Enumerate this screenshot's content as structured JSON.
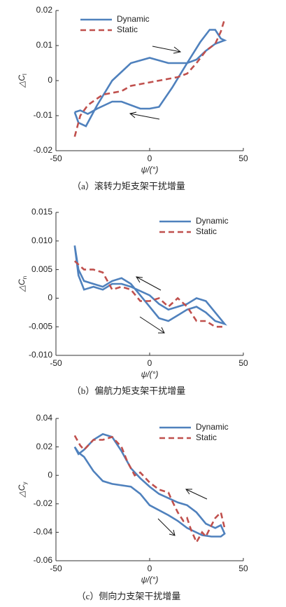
{
  "chart_data": [
    {
      "type": "line",
      "xlabel": "ψ/(°)",
      "ylabel": "△C",
      "ylabel_subscript": "l",
      "caption": "（a）滚转力矩支架干扰增量",
      "xlim": [
        -50,
        50
      ],
      "xticks": [
        -50,
        0,
        50
      ],
      "ylim": [
        -0.02,
        0.02
      ],
      "yticks": [
        -0.02,
        -0.01,
        0,
        0.01,
        0.02
      ],
      "legend": "upper left",
      "series": [
        {
          "name": "Dynamic",
          "color": "#4f81bd",
          "style": "solid",
          "x": [
            -40,
            -37,
            -33,
            -28,
            -20,
            -15,
            -5,
            0,
            5,
            12,
            20,
            27,
            32,
            35,
            38,
            40,
            35,
            30,
            25,
            20,
            10,
            0,
            -10,
            -20,
            -28,
            -34,
            -38,
            -40
          ],
          "values": [
            -0.009,
            -0.0085,
            -0.0095,
            -0.008,
            -0.006,
            -0.006,
            -0.008,
            -0.008,
            -0.0075,
            -0.002,
            0.005,
            0.011,
            0.0145,
            0.0145,
            0.012,
            0.0115,
            0.0105,
            0.0085,
            0.006,
            0.005,
            0.005,
            0.0065,
            0.005,
            0.0,
            -0.007,
            -0.013,
            -0.012,
            -0.009
          ]
        },
        {
          "name": "Static",
          "color": "#c0504d",
          "style": "dashed",
          "x": [
            -40,
            -37,
            -33,
            -25,
            -15,
            -10,
            -5,
            0,
            5,
            10,
            15,
            20,
            25,
            30,
            35,
            38,
            40
          ],
          "values": [
            -0.016,
            -0.01,
            -0.007,
            -0.004,
            -0.003,
            -0.0015,
            -0.001,
            -0.0005,
            0,
            0.0005,
            0.001,
            0.002,
            0.005,
            0.0085,
            0.0105,
            0.014,
            0.0175
          ]
        }
      ]
    },
    {
      "type": "line",
      "xlabel": "ψ/(°)",
      "ylabel": "△C",
      "ylabel_subscript": "n",
      "caption": "（b）偏航力矩支架干扰增量",
      "xlim": [
        -50,
        50
      ],
      "xticks": [
        -50,
        0,
        50
      ],
      "ylim": [
        -0.01,
        0.015
      ],
      "yticks": [
        {
          "value": -0.01,
          "label": "-0.010"
        },
        -0.005,
        0,
        0.005,
        {
          "value": 0.01,
          "label": "0.010"
        },
        0.015
      ],
      "legend": "upper right",
      "series": [
        {
          "name": "Dynamic",
          "color": "#4f81bd",
          "style": "solid",
          "x": [
            -40,
            -38,
            -35,
            -30,
            -25,
            -20,
            -15,
            -10,
            0,
            5,
            10,
            15,
            20,
            25,
            30,
            35,
            40,
            35,
            30,
            25,
            20,
            15,
            10,
            5,
            0,
            -5,
            -10,
            -15,
            -20,
            -25,
            -30,
            -35,
            -38,
            -40
          ],
          "values": [
            0.0092,
            0.004,
            0.0015,
            0.002,
            0.0015,
            0.0025,
            0.0025,
            0.002,
            0.0005,
            -0.001,
            -0.002,
            -0.0015,
            -0.001,
            0.0,
            -0.0005,
            -0.0025,
            -0.0045,
            -0.004,
            -0.0025,
            -0.0015,
            -0.002,
            -0.003,
            -0.004,
            -0.0035,
            -0.0015,
            0.0005,
            0.0025,
            0.0035,
            0.003,
            0.002,
            0.0025,
            0.003,
            0.005,
            0.0092
          ]
        },
        {
          "name": "Static",
          "color": "#c0504d",
          "style": "dashed",
          "x": [
            -40,
            -35,
            -30,
            -25,
            -20,
            -15,
            -10,
            -5,
            0,
            5,
            10,
            15,
            20,
            25,
            30,
            35,
            40
          ],
          "values": [
            0.0065,
            0.005,
            0.005,
            0.0045,
            0.0015,
            0.002,
            0.0015,
            -0.0005,
            -0.0005,
            0.0,
            -0.0015,
            0.0,
            -0.0015,
            -0.004,
            -0.004,
            -0.005,
            -0.005
          ]
        }
      ]
    },
    {
      "type": "line",
      "xlabel": "ψ/(°)",
      "ylabel": "△C",
      "ylabel_subscript": "y",
      "caption": "（c）侧向力支架干扰增量",
      "xlim": [
        -50,
        50
      ],
      "xticks": [
        -50,
        0,
        50
      ],
      "ylim": [
        -0.06,
        0.04
      ],
      "yticks": [
        -0.06,
        -0.04,
        -0.02,
        0,
        0.02,
        0.04
      ],
      "legend": "upper right",
      "series": [
        {
          "name": "Dynamic",
          "color": "#4f81bd",
          "style": "solid",
          "x": [
            -40,
            -38,
            -35,
            -30,
            -25,
            -20,
            -15,
            -10,
            -5,
            0,
            5,
            10,
            15,
            20,
            25,
            30,
            35,
            38,
            40,
            38,
            33,
            28,
            20,
            15,
            10,
            0,
            -5,
            -10,
            -20,
            -25,
            -30,
            -35,
            -38,
            -40
          ],
          "values": [
            0.02,
            0.015,
            0.018,
            0.025,
            0.029,
            0.027,
            0.017,
            0.005,
            -0.002,
            -0.008,
            -0.013,
            -0.016,
            -0.019,
            -0.021,
            -0.026,
            -0.034,
            -0.037,
            -0.035,
            -0.041,
            -0.043,
            -0.043,
            -0.042,
            -0.037,
            -0.032,
            -0.028,
            -0.021,
            -0.013,
            -0.008,
            -0.006,
            -0.004,
            0.003,
            0.013,
            0.016,
            0.02
          ]
        },
        {
          "name": "Static",
          "color": "#c0504d",
          "style": "dashed",
          "x": [
            -40,
            -37,
            -35,
            -30,
            -25,
            -20,
            -15,
            -12,
            -8,
            -5,
            0,
            5,
            10,
            12,
            15,
            18,
            20,
            22,
            25,
            28,
            30,
            33,
            35,
            38,
            40
          ],
          "values": [
            0.028,
            0.021,
            0.018,
            0.025,
            0.025,
            0.027,
            0.02,
            0.01,
            0.0,
            0.002,
            -0.005,
            -0.01,
            -0.012,
            -0.018,
            -0.026,
            -0.032,
            -0.03,
            -0.038,
            -0.047,
            -0.04,
            -0.043,
            -0.035,
            -0.03,
            -0.026,
            -0.037
          ]
        }
      ]
    }
  ]
}
